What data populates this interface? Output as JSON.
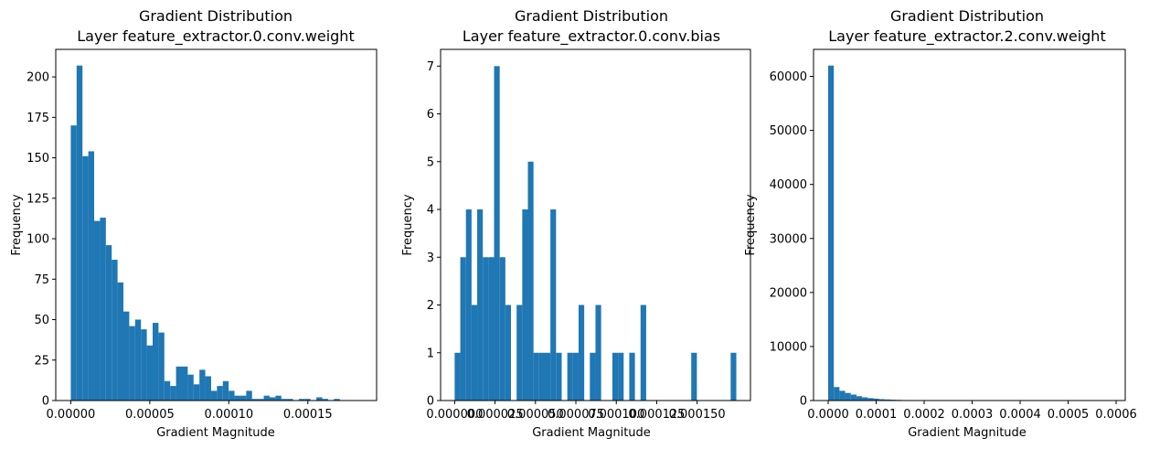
{
  "chart_data": [
    {
      "type": "bar",
      "title_line1": "Gradient Distribution",
      "title_line2": "Layer feature_extractor.0.conv.weight",
      "xlabel": "Gradient Magnitude",
      "ylabel": "Frequency",
      "color": "#1f77b4",
      "xlim": [
        -9.5e-06,
        0.0001935
      ],
      "ylim": [
        0,
        217
      ],
      "xticks": [
        0,
        5e-05,
        0.0001,
        0.00015
      ],
      "xtick_labels": [
        "0.00000",
        "0.00005",
        "0.00010",
        "0.00015"
      ],
      "yticks": [
        0,
        25,
        50,
        75,
        100,
        125,
        150,
        175,
        200
      ],
      "ytick_labels": [
        "0",
        "25",
        "50",
        "75",
        "100",
        "125",
        "150",
        "175",
        "200"
      ],
      "bin_start": 0.0,
      "bin_width": 3.7e-06,
      "values": [
        170,
        207,
        151,
        154,
        111,
        113,
        96,
        87,
        73,
        55,
        46,
        50,
        44,
        34,
        48,
        42,
        12,
        9,
        21,
        21,
        16,
        10,
        19,
        15,
        6,
        9,
        12,
        6,
        3,
        3,
        6,
        1,
        1,
        3,
        2,
        3,
        1,
        1,
        0,
        1,
        1,
        0,
        2,
        1,
        0,
        1
      ]
    },
    {
      "type": "bar",
      "title_line1": "Gradient Distribution",
      "title_line2": "Layer feature_extractor.0.conv.bias",
      "xlabel": "Gradient Magnitude",
      "ylabel": "Frequency",
      "color": "#1f77b4",
      "xlim": [
        -8.7e-06,
        0.000183
      ],
      "ylim": [
        0,
        7.35
      ],
      "xticks": [
        0,
        2.5e-05,
        5e-05,
        7.5e-05,
        0.0001,
        0.000125,
        0.00015
      ],
      "xtick_labels": [
        "0.000000",
        "0.000025",
        "0.000050",
        "0.000075",
        "0.000100",
        "0.000125",
        "0.000150"
      ],
      "yticks": [
        0,
        1,
        2,
        3,
        4,
        5,
        6,
        7
      ],
      "ytick_labels": [
        "0",
        "1",
        "2",
        "3",
        "4",
        "5",
        "6",
        "7"
      ],
      "bin_start": 0.0,
      "bin_width": 3.485e-06,
      "values": [
        1,
        3,
        4,
        2,
        4,
        3,
        3,
        7,
        3,
        2,
        0,
        2,
        4,
        5,
        1,
        1,
        1,
        4,
        1,
        0,
        1,
        1,
        2,
        0,
        1,
        2,
        0,
        0,
        1,
        1,
        0,
        1,
        0,
        2,
        0,
        0,
        0,
        0,
        0,
        0,
        0,
        0,
        1,
        0,
        0,
        0,
        0,
        0,
        0,
        1
      ]
    },
    {
      "type": "bar",
      "title_line1": "Gradient Distribution",
      "title_line2": "Layer feature_extractor.2.conv.weight",
      "xlabel": "Gradient Magnitude",
      "ylabel": "Frequency",
      "color": "#1f77b4",
      "xlim": [
        -3.05e-05,
        0.000619
      ],
      "ylim": [
        0,
        65000
      ],
      "xticks": [
        0,
        0.0001,
        0.0002,
        0.0003,
        0.0004,
        0.0005,
        0.0006
      ],
      "xtick_labels": [
        "0.0000",
        "0.0001",
        "0.0002",
        "0.0003",
        "0.0004",
        "0.0005",
        "0.0006"
      ],
      "yticks": [
        0,
        10000,
        20000,
        30000,
        40000,
        50000,
        60000
      ],
      "ytick_labels": [
        "0",
        "10000",
        "20000",
        "30000",
        "40000",
        "50000",
        "60000"
      ],
      "bin_start": 0.0,
      "bin_width": 1.178e-05,
      "values": [
        62000,
        2500,
        1800,
        1400,
        1100,
        800,
        600,
        450,
        350,
        250,
        200,
        150,
        120,
        90,
        70,
        60,
        50,
        40,
        30,
        25,
        20,
        15,
        10,
        8,
        6,
        5,
        4,
        3,
        3,
        2,
        2,
        2,
        1,
        1,
        1,
        1,
        1,
        1,
        1,
        1,
        1,
        1,
        1,
        1,
        1,
        1,
        1,
        1,
        1,
        1
      ]
    }
  ]
}
